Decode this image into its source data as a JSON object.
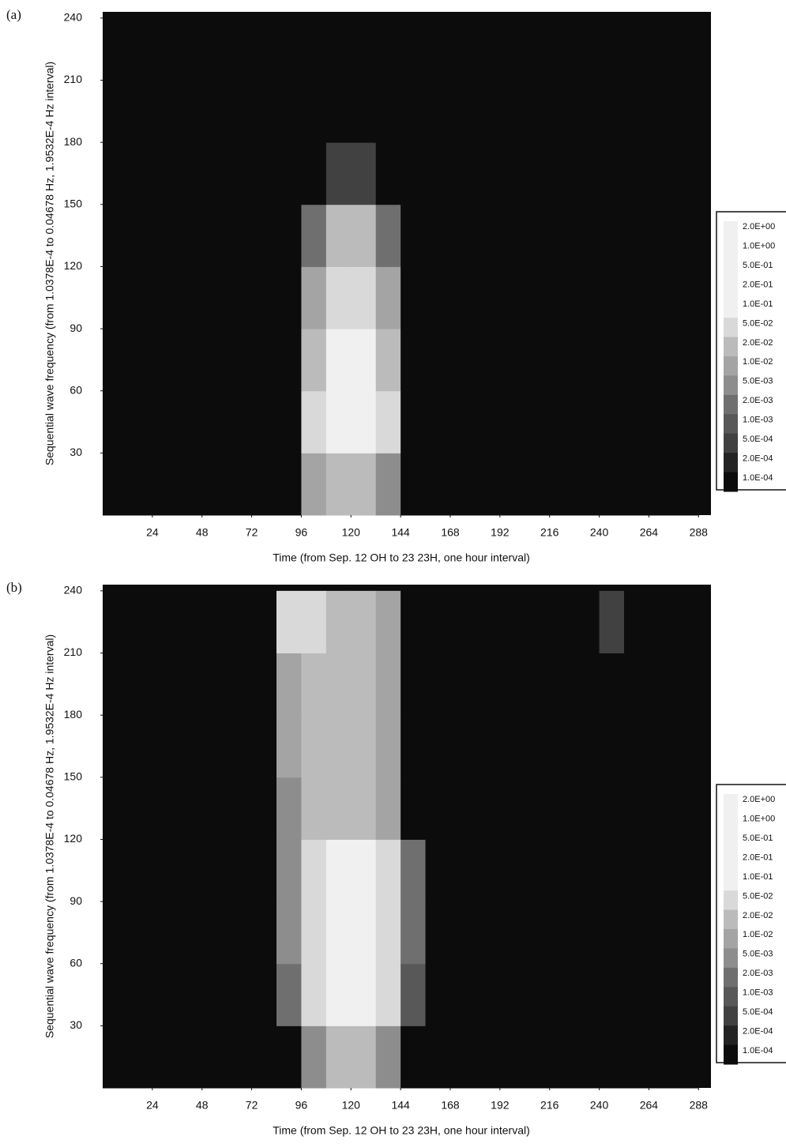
{
  "chart_data": [
    {
      "type": "heatmap",
      "title": "(a)",
      "xlabel": "Time (from Sep. 12 OH to 23 23H, one hour interval)",
      "ylabel": "Sequential wave frequency (from 1.0378E-4 to 0.04678 Hz, 1.9532E-4 Hz interval)",
      "xlim": [
        0,
        294
      ],
      "ylim": [
        0,
        243
      ],
      "xticks": [
        24,
        48,
        72,
        96,
        120,
        144,
        168,
        192,
        216,
        240,
        264,
        288
      ],
      "yticks": [
        30,
        60,
        90,
        120,
        150,
        180,
        210,
        240
      ],
      "x": [
        0,
        12,
        24,
        36,
        48,
        60,
        72,
        84,
        96,
        108,
        120,
        132,
        144,
        156,
        168,
        180,
        192,
        204,
        216,
        228,
        240,
        252,
        264,
        276,
        288
      ],
      "y": [
        0,
        30,
        60,
        90,
        120,
        150,
        180,
        210,
        240
      ],
      "z": [
        [
          0.0001,
          0.0001,
          0.0001,
          0.0001,
          0.0001,
          0.0001,
          0.0001,
          0.0001,
          0.01,
          0.02,
          0.02,
          0.005,
          0.0001,
          0.0001,
          0.0001,
          0.0001,
          0.0001,
          0.0001,
          0.0001,
          0.0001,
          0.0001,
          0.0001,
          0.0001,
          0.0001
        ],
        [
          0.0001,
          0.0001,
          0.0001,
          0.0001,
          0.0001,
          0.0001,
          0.0001,
          0.0001,
          0.05,
          0.1,
          0.1,
          0.05,
          0.0001,
          0.0001,
          0.0001,
          0.0001,
          0.0001,
          0.0001,
          0.0001,
          0.0001,
          0.0001,
          0.0001,
          0.0001,
          0.0001
        ],
        [
          0.0001,
          0.0001,
          0.0001,
          0.0001,
          0.0001,
          0.0001,
          0.0001,
          0.0001,
          0.02,
          0.1,
          0.1,
          0.02,
          0.0001,
          0.0001,
          0.0001,
          0.0001,
          0.0001,
          0.0001,
          0.0001,
          0.0001,
          0.0001,
          0.0001,
          0.0001,
          0.0001
        ],
        [
          0.0001,
          0.0001,
          0.0001,
          0.0001,
          0.0001,
          0.0001,
          0.0001,
          0.0001,
          0.01,
          0.05,
          0.05,
          0.01,
          0.0001,
          0.0001,
          0.0001,
          0.0001,
          0.0001,
          0.0001,
          0.0001,
          0.0001,
          0.0001,
          0.0001,
          0.0001,
          0.0001
        ],
        [
          0.0001,
          0.0001,
          0.0001,
          0.0001,
          0.0001,
          0.0001,
          0.0001,
          0.0001,
          0.002,
          0.02,
          0.02,
          0.002,
          0.0001,
          0.0001,
          0.0001,
          0.0001,
          0.0001,
          0.0001,
          0.0001,
          0.0001,
          0.0001,
          0.0001,
          0.0001,
          0.0001
        ],
        [
          0.0001,
          0.0001,
          0.0001,
          0.0001,
          0.0001,
          0.0001,
          0.0001,
          0.0001,
          0.0001,
          0.0005,
          0.0005,
          0.0001,
          0.0001,
          0.0001,
          0.0001,
          0.0001,
          0.0001,
          0.0001,
          0.0001,
          0.0001,
          0.0001,
          0.0001,
          0.0001,
          0.0001
        ],
        [
          0.0001,
          0.0001,
          0.0001,
          0.0001,
          0.0001,
          0.0001,
          0.0001,
          0.0001,
          0.0001,
          0.0001,
          0.0001,
          0.0001,
          0.0001,
          0.0001,
          0.0001,
          0.0001,
          0.0001,
          0.0001,
          0.0001,
          0.0001,
          0.0001,
          0.0001,
          0.0001,
          0.0001
        ],
        [
          0.0001,
          0.0001,
          0.0001,
          0.0001,
          0.0001,
          0.0001,
          0.0001,
          0.0001,
          0.0001,
          0.0001,
          0.0001,
          0.0001,
          0.0001,
          0.0001,
          0.0001,
          0.0001,
          0.0001,
          0.0001,
          0.0001,
          0.0001,
          0.0001,
          0.0001,
          0.0001,
          0.0001
        ]
      ],
      "colorbar_ticks": [
        {
          "value": 2,
          "label": "2.0E+00"
        },
        {
          "value": 1,
          "label": "1.0E+00"
        },
        {
          "value": 0.5,
          "label": "5.0E-01"
        },
        {
          "value": 0.2,
          "label": "2.0E-01"
        },
        {
          "value": 0.1,
          "label": "1.0E-01"
        },
        {
          "value": 0.05,
          "label": "5.0E-02"
        },
        {
          "value": 0.02,
          "label": "2.0E-02"
        },
        {
          "value": 0.01,
          "label": "1.0E-02"
        },
        {
          "value": 0.005,
          "label": "5.0E-03"
        },
        {
          "value": 0.002,
          "label": "2.0E-03"
        },
        {
          "value": 0.001,
          "label": "1.0E-03"
        },
        {
          "value": 0.0005,
          "label": "5.0E-04"
        },
        {
          "value": 0.0002,
          "label": "2.0E-04"
        },
        {
          "value": 0.0001,
          "label": "1.0E-04"
        }
      ]
    },
    {
      "type": "heatmap",
      "title": "(b)",
      "xlabel": "Time (from Sep. 12 OH to 23 23H, one hour interval)",
      "ylabel": "Sequential wave frequency (from 1.0378E-4 to 0.04678 Hz, 1.9532E-4 Hz interval)",
      "xlim": [
        0,
        294
      ],
      "ylim": [
        0,
        243
      ],
      "xticks": [
        24,
        48,
        72,
        96,
        120,
        144,
        168,
        192,
        216,
        240,
        264,
        288
      ],
      "yticks": [
        30,
        60,
        90,
        120,
        150,
        180,
        210,
        240
      ],
      "x": [
        0,
        12,
        24,
        36,
        48,
        60,
        72,
        84,
        96,
        108,
        120,
        132,
        144,
        156,
        168,
        180,
        192,
        204,
        216,
        228,
        240,
        252,
        264,
        276,
        288
      ],
      "y": [
        0,
        30,
        60,
        90,
        120,
        150,
        180,
        210,
        240
      ],
      "z": [
        [
          0.0001,
          0.0001,
          0.0001,
          0.0001,
          0.0001,
          0.0001,
          0.0001,
          0.0001,
          0.005,
          0.02,
          0.02,
          0.005,
          0.0001,
          0.0001,
          0.0001,
          0.0001,
          0.0001,
          0.0001,
          0.0001,
          0.0001,
          0.0001,
          0.0001,
          0.0001,
          0.0001
        ],
        [
          0.0001,
          0.0001,
          0.0001,
          0.0001,
          0.0001,
          0.0001,
          0.0001,
          0.002,
          0.05,
          0.1,
          0.1,
          0.05,
          0.001,
          0.0001,
          0.0001,
          0.0001,
          0.0001,
          0.0001,
          0.0001,
          0.0001,
          0.0001,
          0.0001,
          0.0001,
          0.0001
        ],
        [
          0.0001,
          0.0001,
          0.0001,
          0.0001,
          0.0001,
          0.0001,
          0.0001,
          0.005,
          0.05,
          0.1,
          0.1,
          0.05,
          0.002,
          0.0001,
          0.0001,
          0.0001,
          0.0001,
          0.0001,
          0.0001,
          0.0001,
          0.0001,
          0.0001,
          0.0001,
          0.0001
        ],
        [
          0.0001,
          0.0001,
          0.0001,
          0.0001,
          0.0001,
          0.0001,
          0.0001,
          0.005,
          0.05,
          0.1,
          0.1,
          0.05,
          0.002,
          0.0001,
          0.0001,
          0.0001,
          0.0001,
          0.0001,
          0.0001,
          0.0001,
          0.0001,
          0.0001,
          0.0001,
          0.0001
        ],
        [
          0.0001,
          0.0001,
          0.0001,
          0.0001,
          0.0001,
          0.0001,
          0.0001,
          0.005,
          0.02,
          0.02,
          0.02,
          0.01,
          0.0001,
          0.0001,
          0.0001,
          0.0001,
          0.0001,
          0.0001,
          0.0001,
          0.0001,
          0.0001,
          0.0001,
          0.0001,
          0.0001
        ],
        [
          0.0001,
          0.0001,
          0.0001,
          0.0001,
          0.0001,
          0.0001,
          0.0001,
          0.01,
          0.02,
          0.02,
          0.02,
          0.01,
          0.0001,
          0.0001,
          0.0001,
          0.0001,
          0.0001,
          0.0001,
          0.0001,
          0.0001,
          0.0001,
          0.0001,
          0.0001,
          0.0001
        ],
        [
          0.0001,
          0.0001,
          0.0001,
          0.0001,
          0.0001,
          0.0001,
          0.0001,
          0.01,
          0.02,
          0.02,
          0.02,
          0.01,
          0.0001,
          0.0001,
          0.0001,
          0.0001,
          0.0001,
          0.0001,
          0.0001,
          0.0001,
          0.0001,
          0.0001,
          0.0001,
          0.0001
        ],
        [
          0.0001,
          0.0001,
          0.0001,
          0.0001,
          0.0001,
          0.0001,
          0.0001,
          0.05,
          0.05,
          0.02,
          0.02,
          0.01,
          0.0001,
          0.0001,
          0.0001,
          0.0001,
          0.0001,
          0.0001,
          0.0001,
          0.0001,
          0.0005,
          0.0001,
          0.0001,
          0.0001
        ]
      ],
      "colorbar_ticks": [
        {
          "value": 2,
          "label": "2.0E+00"
        },
        {
          "value": 1,
          "label": "1.0E+00"
        },
        {
          "value": 0.5,
          "label": "5.0E-01"
        },
        {
          "value": 0.2,
          "label": "2.0E-01"
        },
        {
          "value": 0.1,
          "label": "1.0E-01"
        },
        {
          "value": 0.05,
          "label": "5.0E-02"
        },
        {
          "value": 0.02,
          "label": "2.0E-02"
        },
        {
          "value": 0.01,
          "label": "1.0E-02"
        },
        {
          "value": 0.005,
          "label": "5.0E-03"
        },
        {
          "value": 0.002,
          "label": "2.0E-03"
        },
        {
          "value": 0.001,
          "label": "1.0E-03"
        },
        {
          "value": 0.0005,
          "label": "5.0E-04"
        },
        {
          "value": 0.0002,
          "label": "2.0E-04"
        },
        {
          "value": 0.0001,
          "label": "1.0E-04"
        }
      ]
    }
  ]
}
